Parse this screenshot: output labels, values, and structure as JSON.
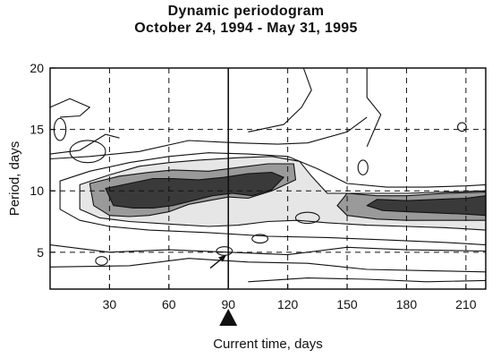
{
  "chart_data": {
    "type": "heatmap",
    "title": "Dynamic periodogram",
    "subtitle": "October 24, 1994 - May 31, 1995",
    "xlabel": "Current time, days",
    "ylabel": "Period, days",
    "xlim": [
      0,
      220
    ],
    "ylim": [
      2,
      20
    ],
    "xticks": [
      30,
      60,
      90,
      120,
      150,
      180,
      210
    ],
    "yticks": [
      5,
      10,
      15,
      20
    ],
    "grid": "dashed",
    "current_time_marker": 90,
    "arrow_annotation": {
      "x": 89,
      "y": 4.8
    },
    "contour_bands": [
      {
        "level": 1,
        "fill": "#ffffff",
        "points": [
          [
            5,
            10.8
          ],
          [
            20,
            11.6
          ],
          [
            40,
            12.3
          ],
          [
            60,
            12.8
          ],
          [
            80,
            13.1
          ],
          [
            100,
            13.0
          ],
          [
            120,
            12.8
          ],
          [
            135,
            11.8
          ],
          [
            150,
            10.6
          ],
          [
            170,
            10.3
          ],
          [
            190,
            10.3
          ],
          [
            210,
            10.4
          ],
          [
            220,
            10.5
          ],
          [
            220,
            5.6
          ],
          [
            200,
            5.8
          ],
          [
            170,
            6.0
          ],
          [
            140,
            6.2
          ],
          [
            110,
            6.3
          ],
          [
            80,
            6.6
          ],
          [
            50,
            6.8
          ],
          [
            30,
            7.1
          ],
          [
            15,
            7.6
          ],
          [
            5,
            8.5
          ]
        ]
      },
      {
        "level": 2,
        "fill": "#e6e6e6",
        "points": [
          [
            15,
            10.5
          ],
          [
            30,
            11.3
          ],
          [
            45,
            12.0
          ],
          [
            60,
            12.3
          ],
          [
            75,
            12.5
          ],
          [
            95,
            12.7
          ],
          [
            112,
            12.8
          ],
          [
            126,
            12.4
          ],
          [
            132,
            11.2
          ],
          [
            140,
            9.8
          ],
          [
            160,
            9.8
          ],
          [
            180,
            9.8
          ],
          [
            200,
            9.9
          ],
          [
            220,
            10.0
          ],
          [
            220,
            6.8
          ],
          [
            200,
            7.0
          ],
          [
            180,
            7.1
          ],
          [
            160,
            7.2
          ],
          [
            140,
            7.4
          ],
          [
            125,
            7.6
          ],
          [
            110,
            7.5
          ],
          [
            95,
            7.2
          ],
          [
            80,
            7.1
          ],
          [
            60,
            7.3
          ],
          [
            40,
            7.5
          ],
          [
            25,
            7.8
          ],
          [
            15,
            8.5
          ]
        ]
      },
      {
        "level": 3,
        "fill": "#9a9a9a",
        "points": [
          [
            20,
            10.6
          ],
          [
            35,
            11.2
          ],
          [
            50,
            11.5
          ],
          [
            62,
            11.7
          ],
          [
            80,
            11.6
          ],
          [
            95,
            11.9
          ],
          [
            110,
            12.2
          ],
          [
            123,
            12.2
          ],
          [
            124,
            10.9
          ],
          [
            112,
            10.0
          ],
          [
            100,
            9.4
          ],
          [
            90,
            9.5
          ],
          [
            80,
            9.2
          ],
          [
            70,
            8.9
          ],
          [
            60,
            8.3
          ],
          [
            50,
            8.0
          ],
          [
            40,
            7.9
          ],
          [
            30,
            8.0
          ],
          [
            22,
            8.8
          ]
        ]
      },
      {
        "level": 3,
        "fill": "#9a9a9a",
        "points": [
          [
            150,
            9.8
          ],
          [
            165,
            9.6
          ],
          [
            180,
            9.6
          ],
          [
            200,
            9.8
          ],
          [
            220,
            9.9
          ],
          [
            220,
            7.6
          ],
          [
            200,
            7.6
          ],
          [
            180,
            7.6
          ],
          [
            165,
            7.7
          ],
          [
            150,
            8.0
          ],
          [
            145,
            8.8
          ]
        ]
      },
      {
        "level": 4,
        "fill": "#3a3a3a",
        "points": [
          [
            28,
            10.2
          ],
          [
            40,
            10.6
          ],
          [
            52,
            11.0
          ],
          [
            62,
            11.0
          ],
          [
            75,
            10.9
          ],
          [
            88,
            11.1
          ],
          [
            100,
            11.4
          ],
          [
            112,
            11.5
          ],
          [
            118,
            11.1
          ],
          [
            112,
            10.1
          ],
          [
            102,
            9.6
          ],
          [
            92,
            9.8
          ],
          [
            82,
            9.6
          ],
          [
            72,
            9.2
          ],
          [
            62,
            8.8
          ],
          [
            52,
            8.6
          ],
          [
            42,
            8.6
          ],
          [
            32,
            8.8
          ]
        ]
      },
      {
        "level": 4,
        "fill": "#3a3a3a",
        "points": [
          [
            165,
            9.3
          ],
          [
            180,
            9.2
          ],
          [
            195,
            9.3
          ],
          [
            210,
            9.4
          ],
          [
            220,
            9.6
          ],
          [
            220,
            8.0
          ],
          [
            210,
            8.1
          ],
          [
            195,
            8.2
          ],
          [
            180,
            8.3
          ],
          [
            168,
            8.4
          ],
          [
            160,
            8.8
          ]
        ]
      }
    ],
    "contour_lines": [
      [
        [
          0,
          5.6
        ],
        [
          30,
          5.0
        ],
        [
          60,
          5.2
        ],
        [
          90,
          5.0
        ],
        [
          120,
          4.8
        ],
        [
          150,
          5.4
        ],
        [
          180,
          5.2
        ],
        [
          220,
          5.1
        ]
      ],
      [
        [
          0,
          3.8
        ],
        [
          40,
          3.9
        ],
        [
          70,
          4.5
        ],
        [
          100,
          4.2
        ],
        [
          130,
          4.1
        ],
        [
          160,
          3.6
        ],
        [
          190,
          3.5
        ],
        [
          220,
          3.4
        ]
      ],
      [
        [
          100,
          2.6
        ],
        [
          130,
          2.9
        ],
        [
          160,
          2.8
        ],
        [
          190,
          2.6
        ],
        [
          220,
          2.7
        ]
      ],
      [
        [
          0,
          13.0
        ],
        [
          15,
          13.3
        ],
        [
          28,
          14.6
        ],
        [
          35,
          14.3
        ]
      ],
      [
        [
          0,
          12.6
        ],
        [
          20,
          12.8
        ],
        [
          45,
          13.2
        ],
        [
          70,
          14.1
        ],
        [
          95,
          13.9
        ],
        [
          115,
          13.8
        ],
        [
          130,
          13.9
        ],
        [
          150,
          14.8
        ],
        [
          160,
          16.0
        ]
      ],
      [
        [
          100,
          14.8
        ],
        [
          118,
          15.4
        ],
        [
          127,
          16.8
        ],
        [
          132,
          18.2
        ],
        [
          128,
          20.0
        ]
      ],
      [
        [
          160,
          13.6
        ],
        [
          167,
          16.2
        ],
        [
          160,
          17.6
        ],
        [
          160,
          20.0
        ]
      ],
      [
        [
          0,
          16.8
        ],
        [
          10,
          17.5
        ],
        [
          20,
          16.8
        ],
        [
          15,
          16.1
        ],
        [
          5,
          16.0
        ]
      ]
    ],
    "contour_ellipses": [
      {
        "cx": 5,
        "cy": 15,
        "rx": 3,
        "ry": 0.9
      },
      {
        "cx": 19,
        "cy": 13.2,
        "rx": 9,
        "ry": 0.9
      },
      {
        "cx": 88,
        "cy": 5.1,
        "rx": 4,
        "ry": 0.35
      },
      {
        "cx": 130,
        "cy": 7.8,
        "rx": 6,
        "ry": 0.45
      },
      {
        "cx": 106,
        "cy": 6.1,
        "rx": 4,
        "ry": 0.35
      },
      {
        "cx": 26,
        "cy": 4.3,
        "rx": 3,
        "ry": 0.35
      },
      {
        "cx": 208,
        "cy": 15.2,
        "rx": 2.2,
        "ry": 0.35
      },
      {
        "cx": 158,
        "cy": 11.9,
        "rx": 2.5,
        "ry": 0.6
      }
    ]
  }
}
